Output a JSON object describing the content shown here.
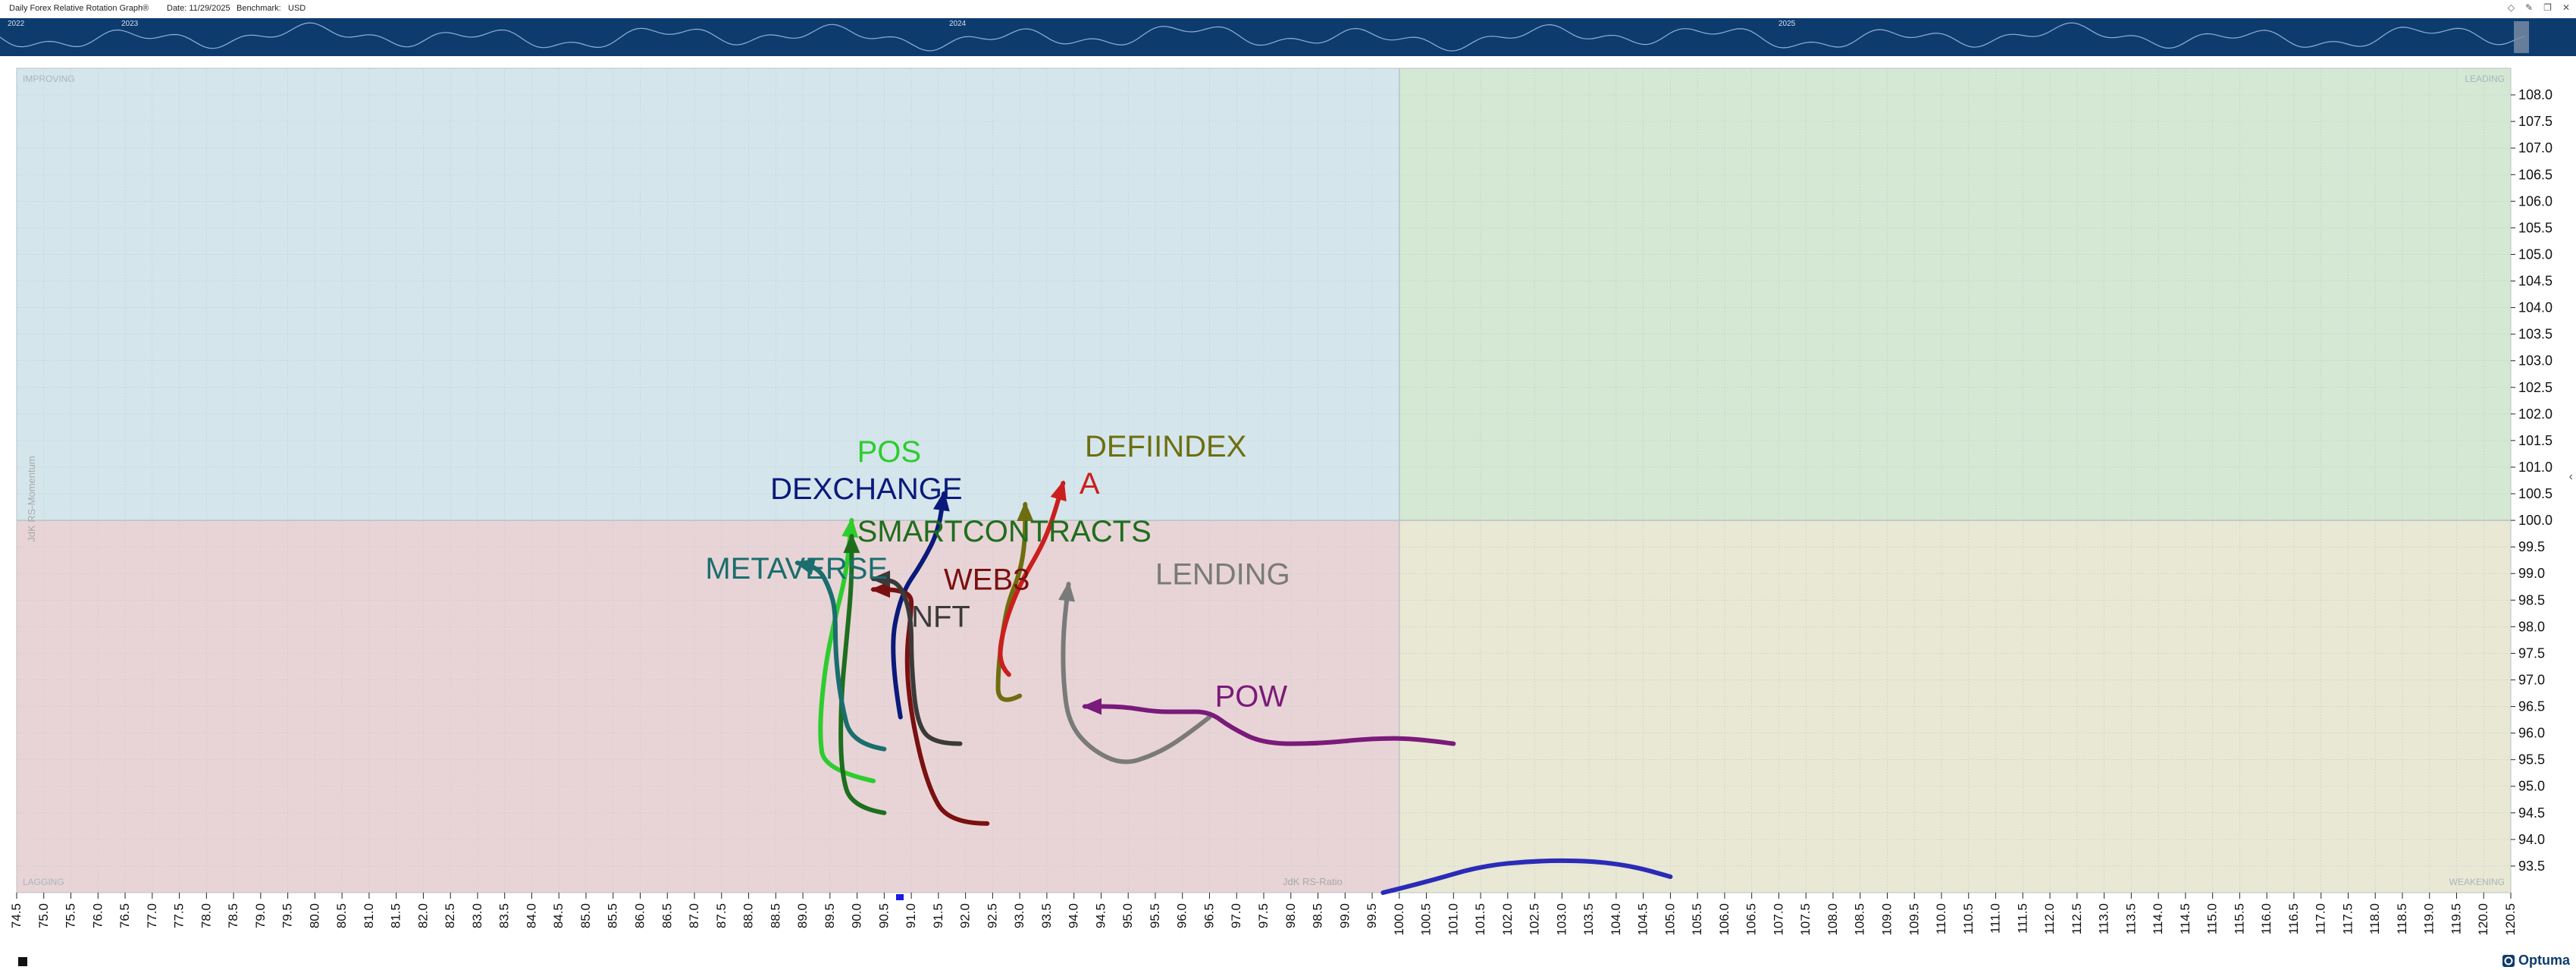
{
  "header": {
    "title": "Daily Forex Relative Rotation Graph®",
    "date_label": "Date: 11/29/2025",
    "benchmark_label": "Benchmark:",
    "benchmark_value": "USD",
    "icons": [
      "diamond-icon",
      "pencil-icon",
      "restore-icon",
      "close-icon"
    ]
  },
  "timeline": {
    "years": [
      "2022",
      "2023",
      "2024",
      "2025"
    ]
  },
  "footer": {
    "brand": "Optuma"
  },
  "chart_data": {
    "type": "scatter",
    "subtype": "relative-rotation-graph",
    "xlabel": "JdK RS-Ratio",
    "ylabel": "JdK RS-Momentum",
    "xlim": [
      74.5,
      120.5
    ],
    "ylim": [
      93.0,
      108.5
    ],
    "x_ticks": [
      74.5,
      75.0,
      75.5,
      76.0,
      76.5,
      77.0,
      77.5,
      78.0,
      78.5,
      79.0,
      79.5,
      80.0,
      80.5,
      81.0,
      81.5,
      82.0,
      82.5,
      83.0,
      83.5,
      84.0,
      84.5,
      85.0,
      85.5,
      86.0,
      86.5,
      87.0,
      87.5,
      88.0,
      88.5,
      89.0,
      89.5,
      90.0,
      90.5,
      91.0,
      91.5,
      92.0,
      92.5,
      93.0,
      93.5,
      94.0,
      94.5,
      95.0,
      95.5,
      96.0,
      96.5,
      97.0,
      97.5,
      98.0,
      98.5,
      99.0,
      99.5,
      100.0,
      100.5,
      101.0,
      101.5,
      102.0,
      102.5,
      103.0,
      103.5,
      104.0,
      104.5,
      105.0,
      105.5,
      106.0,
      106.5,
      107.0,
      107.5,
      108.0,
      108.5,
      109.0,
      109.5,
      110.0,
      110.5,
      111.0,
      111.5,
      112.0,
      112.5,
      113.0,
      113.5,
      114.0,
      114.5,
      115.0,
      115.5,
      116.0,
      116.5,
      117.0,
      117.5,
      118.0,
      118.5,
      119.0,
      119.5,
      120.0,
      120.5
    ],
    "y_ticks": [
      93.5,
      94.0,
      94.5,
      95.0,
      95.5,
      96.0,
      96.5,
      97.0,
      97.5,
      98.0,
      98.5,
      99.0,
      99.5,
      100.0,
      100.5,
      101.0,
      101.5,
      102.0,
      102.5,
      103.0,
      103.5,
      104.0,
      104.5,
      105.0,
      105.5,
      106.0,
      106.5,
      107.0,
      107.5,
      108.0
    ],
    "quadrants": {
      "improving": {
        "label": "IMPROVING",
        "color": "#d4e6ec"
      },
      "leading": {
        "label": "LEADING",
        "color": "#d4e8d4"
      },
      "lagging": {
        "label": "LAGGING",
        "color": "#e8d4d6"
      },
      "weakening": {
        "label": "WEAKENING",
        "color": "#e8e8d4"
      }
    },
    "series": [
      {
        "name": "POS",
        "color": "#2ecc2e",
        "points": [
          [
            90.3,
            95.1
          ],
          [
            89.4,
            95.3
          ],
          [
            89.3,
            96.0
          ],
          [
            89.4,
            97.2
          ],
          [
            89.6,
            98.2
          ],
          [
            89.8,
            99.0
          ],
          [
            89.9,
            100.0
          ]
        ],
        "label_at": [
          90.0,
          101.1
        ]
      },
      {
        "name": "DEXCHANGE",
        "color": "#0a1a7a",
        "points": [
          [
            90.8,
            96.3
          ],
          [
            90.6,
            97.5
          ],
          [
            90.8,
            98.6
          ],
          [
            91.2,
            99.2
          ],
          [
            91.5,
            99.8
          ],
          [
            91.6,
            100.5
          ]
        ],
        "label_at": [
          88.4,
          100.4
        ]
      },
      {
        "name": "SMARTCONTRACTS",
        "color": "#1e6e1e",
        "points": [
          [
            90.5,
            94.5
          ],
          [
            89.9,
            94.6
          ],
          [
            89.7,
            95.3
          ],
          [
            89.7,
            96.6
          ],
          [
            89.8,
            97.7
          ],
          [
            89.9,
            98.8
          ],
          [
            89.9,
            99.7
          ]
        ],
        "label_at": [
          90.0,
          99.6
        ]
      },
      {
        "name": "METAVERSE",
        "color": "#1a6e6e",
        "points": [
          [
            90.5,
            95.7
          ],
          [
            89.9,
            95.8
          ],
          [
            89.7,
            96.6
          ],
          [
            89.6,
            97.5
          ],
          [
            89.6,
            98.3
          ],
          [
            89.5,
            98.7
          ],
          [
            89.3,
            99.1
          ],
          [
            88.9,
            99.2
          ]
        ],
        "label_at": [
          87.2,
          98.9
        ]
      },
      {
        "name": "WEB3",
        "color": "#7a1010",
        "points": [
          [
            92.4,
            94.3
          ],
          [
            91.7,
            94.3
          ],
          [
            91.3,
            95.0
          ],
          [
            91.0,
            96.3
          ],
          [
            90.9,
            97.4
          ],
          [
            91.0,
            98.3
          ],
          [
            91.0,
            98.6
          ],
          [
            90.7,
            98.7
          ],
          [
            90.3,
            98.7
          ]
        ],
        "label_at": [
          91.6,
          98.7
        ]
      },
      {
        "name": "NFT",
        "color": "#3a3a3a",
        "points": [
          [
            91.9,
            95.8
          ],
          [
            91.4,
            95.8
          ],
          [
            91.1,
            96.2
          ],
          [
            91.0,
            97.3
          ],
          [
            91.0,
            98.2
          ],
          [
            90.8,
            98.8
          ],
          [
            90.5,
            98.9
          ],
          [
            90.3,
            98.9
          ]
        ],
        "label_at": [
          91.0,
          98.0
        ]
      },
      {
        "name": "DEFIINDEX",
        "color": "#6e6e10",
        "points": [
          [
            93.0,
            96.7
          ],
          [
            92.6,
            96.5
          ],
          [
            92.6,
            97.2
          ],
          [
            92.7,
            98.0
          ],
          [
            92.8,
            98.5
          ],
          [
            93.0,
            99.0
          ],
          [
            93.1,
            99.6
          ],
          [
            93.1,
            100.3
          ]
        ],
        "label_at": [
          94.2,
          101.2
        ]
      },
      {
        "name": "A",
        "color": "#cc1e1e",
        "points": [
          [
            92.8,
            97.1
          ],
          [
            92.6,
            97.3
          ],
          [
            92.7,
            98.0
          ],
          [
            93.0,
            98.8
          ],
          [
            93.4,
            99.5
          ],
          [
            93.6,
            100.0
          ],
          [
            93.8,
            100.7
          ]
        ],
        "label_at": [
          94.1,
          100.5
        ]
      },
      {
        "name": "LENDING",
        "color": "#7a7a7a",
        "points": [
          [
            96.5,
            96.3
          ],
          [
            96.0,
            95.9
          ],
          [
            95.5,
            95.6
          ],
          [
            94.9,
            95.4
          ],
          [
            94.3,
            95.7
          ],
          [
            93.9,
            96.2
          ],
          [
            93.8,
            97.0
          ],
          [
            93.8,
            97.9
          ],
          [
            93.9,
            98.8
          ]
        ],
        "label_at": [
          95.5,
          98.8
        ]
      },
      {
        "name": "POW",
        "color": "#7a1a7a",
        "points": [
          [
            101.0,
            95.8
          ],
          [
            100.3,
            95.9
          ],
          [
            99.5,
            95.9
          ],
          [
            98.5,
            95.8
          ],
          [
            97.5,
            95.8
          ],
          [
            96.9,
            96.1
          ],
          [
            96.5,
            96.4
          ],
          [
            96.0,
            96.4
          ],
          [
            95.5,
            96.4
          ],
          [
            94.9,
            96.5
          ],
          [
            94.2,
            96.5
          ]
        ],
        "label_at": [
          96.6,
          96.5
        ]
      },
      {
        "name": "",
        "color": "#2b2bb8",
        "points": [
          [
            99.7,
            93.0
          ],
          [
            100.5,
            93.2
          ],
          [
            101.5,
            93.5
          ],
          [
            102.5,
            93.6
          ],
          [
            103.5,
            93.6
          ],
          [
            104.3,
            93.5
          ],
          [
            105.0,
            93.3
          ]
        ],
        "label_at": null
      }
    ]
  }
}
